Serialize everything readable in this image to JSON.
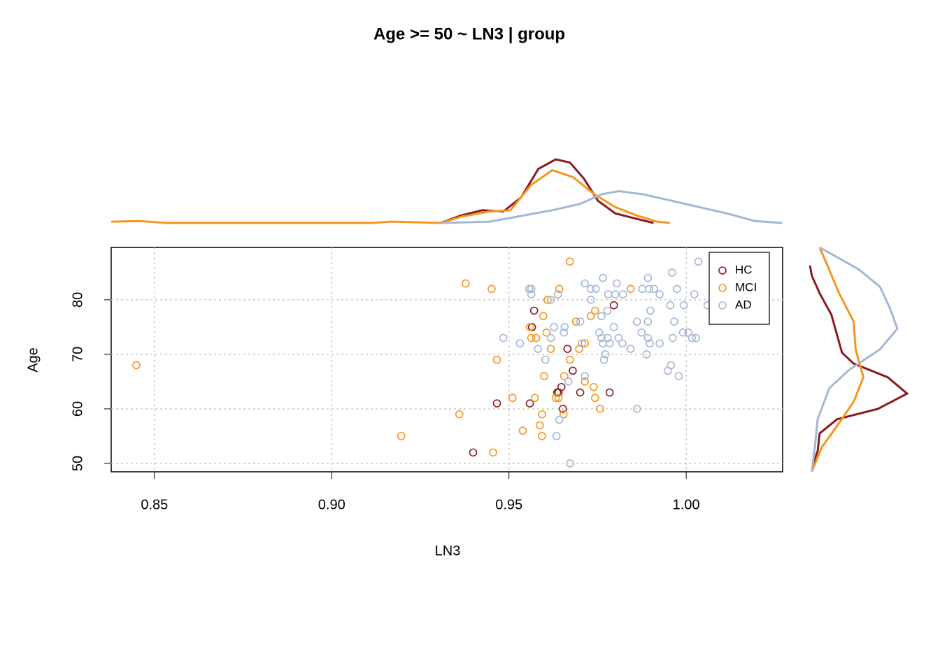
{
  "chart_data": {
    "type": "scatter",
    "title": "Age >= 50 ~ LN3 | group",
    "x_label": "LN3",
    "y_label": "Age",
    "xlim": [
      0.8378,
      1.0272
    ],
    "ylim": [
      48.46,
      89.6
    ],
    "xticks": [
      {
        "value": 0.85,
        "label": "0.85"
      },
      {
        "value": 0.9,
        "label": "0.90"
      },
      {
        "value": 0.95,
        "label": "0.95"
      },
      {
        "value": 1.0,
        "label": "1.00"
      }
    ],
    "yticks": [
      50,
      60,
      70,
      80
    ],
    "grid": true,
    "legend": "topright",
    "series": [
      {
        "name": "HC",
        "color": "#8b1a22",
        "x": [
          0.9565,
          0.9571,
          0.9665,
          0.968,
          0.9648,
          0.964,
          0.9636,
          0.9701,
          0.9784,
          0.9559,
          0.9466,
          0.9652,
          0.9399,
          0.9796
        ],
        "values": [
          75,
          78,
          71,
          67,
          64,
          63,
          63,
          63,
          63,
          61,
          61,
          60,
          52,
          79
        ]
      },
      {
        "name": "MCI",
        "color": "#f7941d",
        "x": [
          0.8449,
          0.9378,
          0.9451,
          0.9672,
          0.9642,
          0.9609,
          0.9597,
          0.9559,
          0.9563,
          0.9577,
          0.9618,
          0.9606,
          0.9672,
          0.9466,
          0.9599,
          0.9656,
          0.9714,
          0.9739,
          0.9689,
          0.9743,
          0.9731,
          0.9714,
          0.9698,
          0.9843,
          0.951,
          0.9573,
          0.9632,
          0.9743,
          0.9757,
          0.936,
          0.9593,
          0.9654,
          0.9587,
          0.9539,
          0.9196,
          0.9593,
          0.9455,
          0.964
        ],
        "values": [
          68,
          83,
          82,
          87,
          82,
          80,
          77,
          75,
          73,
          73,
          71,
          74,
          69,
          69,
          66,
          66,
          65,
          64,
          76,
          78,
          77,
          72,
          71,
          82,
          62,
          62,
          62,
          62,
          60,
          59,
          59,
          59,
          57,
          56,
          55,
          55,
          52,
          62
        ]
      },
      {
        "name": "AD",
        "color": "#a3b7d5",
        "x": [
          1.0034,
          0.9672,
          0.9861,
          0.9634,
          0.9642,
          0.9668,
          0.9714,
          0.9979,
          0.9948,
          0.9957,
          0.9888,
          0.9484,
          0.9531,
          0.9582,
          0.9603,
          0.9627,
          0.9655,
          0.9618,
          0.9563,
          0.9557,
          0.9563,
          0.9638,
          0.9618,
          0.9714,
          0.9731,
          0.9745,
          0.9765,
          0.9731,
          0.9761,
          0.9778,
          0.978,
          0.98,
          0.9804,
          0.9822,
          0.9876,
          0.9892,
          0.9895,
          0.9909,
          0.9925,
          0.9899,
          0.9861,
          0.9892,
          0.9966,
          0.996,
          0.9974,
          0.9955,
          0.9993,
          1.0023,
          1.006,
          0.9991,
          1.0006,
          1.0016,
          1.0028,
          0.9962,
          0.9925,
          0.9897,
          0.9892,
          0.9874,
          0.9843,
          0.982,
          0.9809,
          0.9796,
          0.9755,
          0.9761,
          0.9765,
          0.9784,
          0.9778,
          0.9772,
          0.9768,
          0.9706,
          0.9701,
          0.9657
        ],
        "values": [
          87,
          50,
          60,
          55,
          58,
          65,
          66,
          66,
          67,
          68,
          70,
          73,
          72,
          71,
          69,
          75,
          74,
          73,
          82,
          82,
          81,
          81,
          80,
          83,
          82,
          82,
          84,
          80,
          77,
          78,
          81,
          81,
          83,
          81,
          82,
          84,
          82,
          82,
          81,
          78,
          76,
          76,
          76,
          85,
          82,
          79,
          79,
          81,
          79,
          74,
          74,
          73,
          73,
          73,
          72,
          72,
          73,
          74,
          71,
          72,
          73,
          75,
          74,
          73,
          72,
          72,
          73,
          70,
          69,
          72,
          76,
          75
        ]
      }
    ],
    "marginal_x": [
      {
        "x": [
          0.9307,
          0.9366,
          0.9425,
          0.9484,
          0.9534,
          0.9583,
          0.9632,
          0.9672,
          0.9711,
          0.9751,
          0.98,
          0.9849,
          0.9908
        ],
        "density": [
          0,
          0.12,
          0.2,
          0.18,
          0.4,
          0.85,
          1.0,
          0.95,
          0.7,
          0.35,
          0.15,
          0.08,
          0
        ]
      },
      {
        "x": [
          0.8378,
          0.8459,
          0.8534,
          0.9109,
          0.9169,
          0.9248,
          0.9307,
          0.9366,
          0.9445,
          0.9504,
          0.9563,
          0.9622,
          0.9681,
          0.9741,
          0.98,
          0.9859,
          0.9918,
          0.9954
        ],
        "density": [
          0.02,
          0.03,
          0,
          0,
          0.02,
          0.01,
          0,
          0.1,
          0.18,
          0.2,
          0.6,
          0.83,
          0.72,
          0.45,
          0.25,
          0.12,
          0.02,
          0
        ]
      },
      {
        "x": [
          0.9311,
          0.9445,
          0.9524,
          0.9622,
          0.9701,
          0.976,
          0.981,
          0.9879,
          0.9958,
          1.0036,
          1.0115,
          1.0194,
          1.0271
        ],
        "density": [
          0,
          0.02,
          0.1,
          0.2,
          0.3,
          0.45,
          0.5,
          0.45,
          0.35,
          0.25,
          0.15,
          0.03,
          0
        ]
      }
    ],
    "marginal_y": [
      {
        "y": [
          86.3,
          84.4,
          81.2,
          77.3,
          73.5,
          70.3,
          68.3,
          65.8,
          62.8,
          60,
          58.1,
          55.5,
          52.3,
          49.7,
          48.5
        ],
        "density": [
          0,
          0.02,
          0.1,
          0.22,
          0.28,
          0.33,
          0.45,
          0.8,
          1.0,
          0.7,
          0.28,
          0.1,
          0.08,
          0.03,
          0.02
        ]
      },
      {
        "y": [
          89.6,
          86.3,
          81.2,
          76,
          70.9,
          65.8,
          61.3,
          57.4,
          52.9,
          48.5
        ],
        "density": [
          0.1,
          0.18,
          0.3,
          0.45,
          0.47,
          0.55,
          0.45,
          0.3,
          0.12,
          0.02
        ]
      },
      {
        "y": [
          89.6,
          85.6,
          82.4,
          78.6,
          74.7,
          70.9,
          67.1,
          63.8,
          58.1,
          52.9,
          48.5
        ],
        "density": [
          0.1,
          0.5,
          0.72,
          0.82,
          0.9,
          0.72,
          0.4,
          0.2,
          0.08,
          0.05,
          0.02
        ]
      }
    ]
  }
}
